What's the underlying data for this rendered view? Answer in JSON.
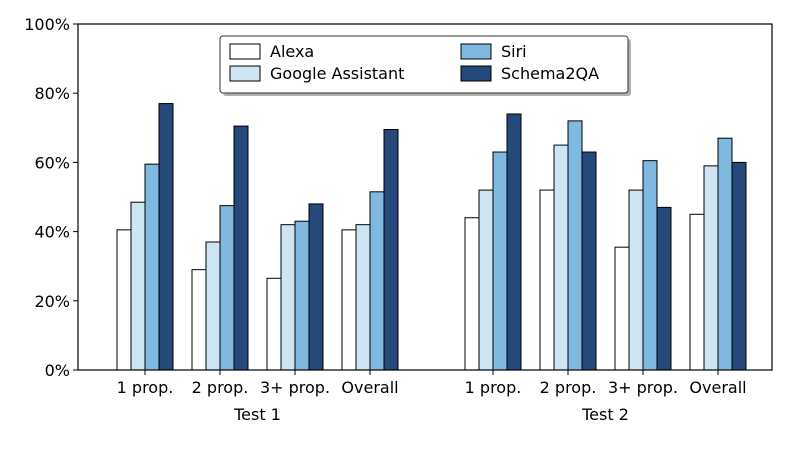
{
  "chart_data": {
    "type": "bar",
    "title": "",
    "xlabel": "",
    "ylabel": "",
    "ylim": [
      0,
      100
    ],
    "yticks": [
      "0%",
      "20%",
      "40%",
      "60%",
      "80%",
      "100%"
    ],
    "grid": false,
    "legend_position": "top-center",
    "groups": [
      {
        "label": "Test 1",
        "categories": [
          "1 prop.",
          "2 prop.",
          "3+ prop.",
          "Overall"
        ]
      },
      {
        "label": "Test 2",
        "categories": [
          "1 prop.",
          "2 prop.",
          "3+ prop.",
          "Overall"
        ]
      }
    ],
    "series": [
      {
        "name": "Alexa",
        "color": "#ffffff",
        "values": [
          40.5,
          29,
          26.5,
          40.5,
          44,
          52,
          35.5,
          45
        ]
      },
      {
        "name": "Google Assistant",
        "color": "#cde4f3",
        "values": [
          48.5,
          37,
          42,
          42,
          52,
          65,
          52,
          59
        ]
      },
      {
        "name": "Siri",
        "color": "#7fb9e0",
        "values": [
          59.5,
          47.5,
          43,
          51.5,
          63,
          72,
          60.5,
          67
        ]
      },
      {
        "name": "Schema2QA",
        "color": "#25497a",
        "values": [
          77,
          70.5,
          48,
          69.5,
          74,
          63,
          47,
          60
        ]
      }
    ]
  }
}
